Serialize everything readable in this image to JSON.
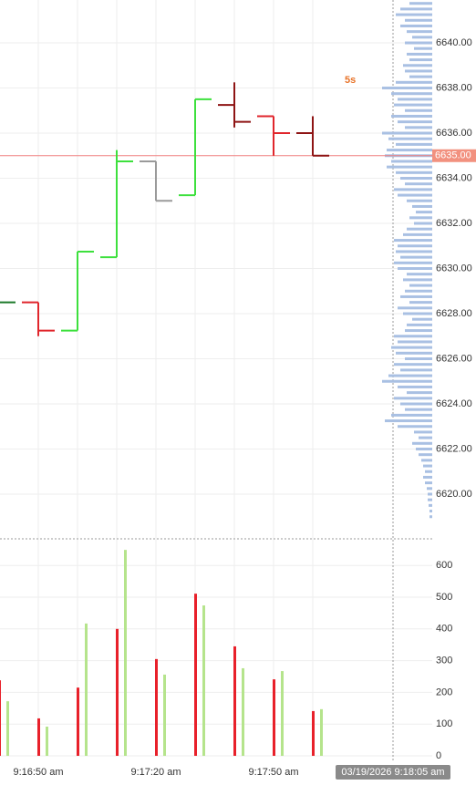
{
  "chart_data": [
    {
      "type": "ohlc",
      "interval_label": "5s",
      "open": [
        6628.5,
        6628.5,
        6627.25,
        6630.5,
        6634.75,
        6633.25,
        6637.25,
        6636.75,
        6636.0
      ],
      "high": [
        6629.5,
        6628.5,
        6630.75,
        6635.25,
        6634.75,
        6637.5,
        6638.25,
        6636.75,
        6636.75
      ],
      "low": [
        6627.75,
        6627.0,
        6627.25,
        6630.5,
        6633.0,
        6633.25,
        6636.25,
        6635.0,
        6635.0
      ],
      "close": [
        6628.5,
        6627.25,
        6630.75,
        6634.75,
        6633.0,
        6637.5,
        6636.5,
        6636.0,
        6635.0
      ],
      "colors": [
        "#1d7a2a",
        "#e0262c",
        "#3de03d",
        "#3de03d",
        "#9a9a9a",
        "#3de03d",
        "#8e1414",
        "#e0262c",
        "#8e1414"
      ],
      "ylim": [
        6618.06,
        6641.9
      ],
      "yticks": [
        {
          "value": 6620,
          "label": "6620.00"
        },
        {
          "value": 6622,
          "label": "6622.00"
        },
        {
          "value": 6624,
          "label": "6624.00"
        },
        {
          "value": 6626,
          "label": "6626.00"
        },
        {
          "value": 6628,
          "label": "6628.00"
        },
        {
          "value": 6630,
          "label": "6630.00"
        },
        {
          "value": 6632,
          "label": "6632.00"
        },
        {
          "value": 6634,
          "label": "6634.00"
        },
        {
          "value": 6636,
          "label": "6636.00"
        },
        {
          "value": 6638,
          "label": "6638.00"
        },
        {
          "value": 6640,
          "label": "6640.00"
        }
      ],
      "current_price": {
        "value": 6635,
        "label": "6635.00"
      },
      "profile": {
        "color": "#a9c0e3",
        "prices": [
          6641.75,
          6641.5,
          6641.25,
          6641,
          6640.75,
          6640.5,
          6640.25,
          6640,
          6639.75,
          6639.5,
          6639.25,
          6639,
          6638.75,
          6638.5,
          6638.25,
          6638,
          6637.75,
          6637.5,
          6637.25,
          6637,
          6636.75,
          6636.5,
          6636.25,
          6636,
          6635.75,
          6635.5,
          6635.25,
          6635,
          6634.75,
          6634.5,
          6634.25,
          6634,
          6633.75,
          6633.5,
          6633.25,
          6633,
          6632.75,
          6632.5,
          6632.25,
          6632,
          6631.75,
          6631.5,
          6631.25,
          6631,
          6630.75,
          6630.5,
          6630.25,
          6630,
          6629.75,
          6629.5,
          6629.25,
          6629,
          6628.75,
          6628.5,
          6628.25,
          6628,
          6627.75,
          6627.5,
          6627.25,
          6627,
          6626.75,
          6626.5,
          6626.25,
          6626,
          6625.75,
          6625.5,
          6625.25,
          6625,
          6624.75,
          6624.5,
          6624.25,
          6624,
          6623.75,
          6623.5,
          6623.25,
          6623,
          6622.75,
          6622.5,
          6622.25,
          6622,
          6621.75,
          6621.5,
          6621.25,
          6621,
          6620.75,
          6620.5,
          6620.25,
          6620,
          6619.75,
          6619.5,
          6619.25,
          6619
        ],
        "values": [
          25,
          35,
          40,
          30,
          35,
          28,
          22,
          30,
          20,
          28,
          25,
          32,
          30,
          25,
          40,
          55,
          45,
          38,
          42,
          30,
          45,
          38,
          30,
          55,
          48,
          40,
          50,
          52,
          45,
          50,
          40,
          35,
          30,
          42,
          38,
          28,
          22,
          18,
          25,
          20,
          28,
          32,
          42,
          38,
          40,
          35,
          42,
          38,
          28,
          32,
          25,
          30,
          35,
          25,
          38,
          32,
          22,
          28,
          30,
          42,
          38,
          45,
          40,
          30,
          42,
          35,
          48,
          55,
          38,
          28,
          42,
          35,
          30,
          45,
          52,
          38,
          20,
          15,
          22,
          18,
          15,
          12,
          10,
          8,
          10,
          8,
          6,
          5,
          5,
          4,
          3,
          3
        ]
      }
    },
    {
      "type": "bar",
      "categories": [
        null,
        "9:16:50 am",
        null,
        null,
        "9:17:20 am",
        null,
        null,
        "9:17:50 am",
        null
      ],
      "series": [
        {
          "color": "#e8202a",
          "values": [
            238,
            118,
            215,
            400,
            305,
            511,
            345,
            241,
            141
          ]
        },
        {
          "color": "#b5e48c",
          "values": [
            172,
            92,
            417,
            649,
            256,
            474,
            276,
            267,
            147
          ]
        }
      ],
      "ylim": [
        0,
        681
      ],
      "yticks": [
        0,
        100,
        200,
        300,
        400,
        500,
        600
      ],
      "crosshair_label": "03/19/2026 9:18:05 am"
    }
  ]
}
